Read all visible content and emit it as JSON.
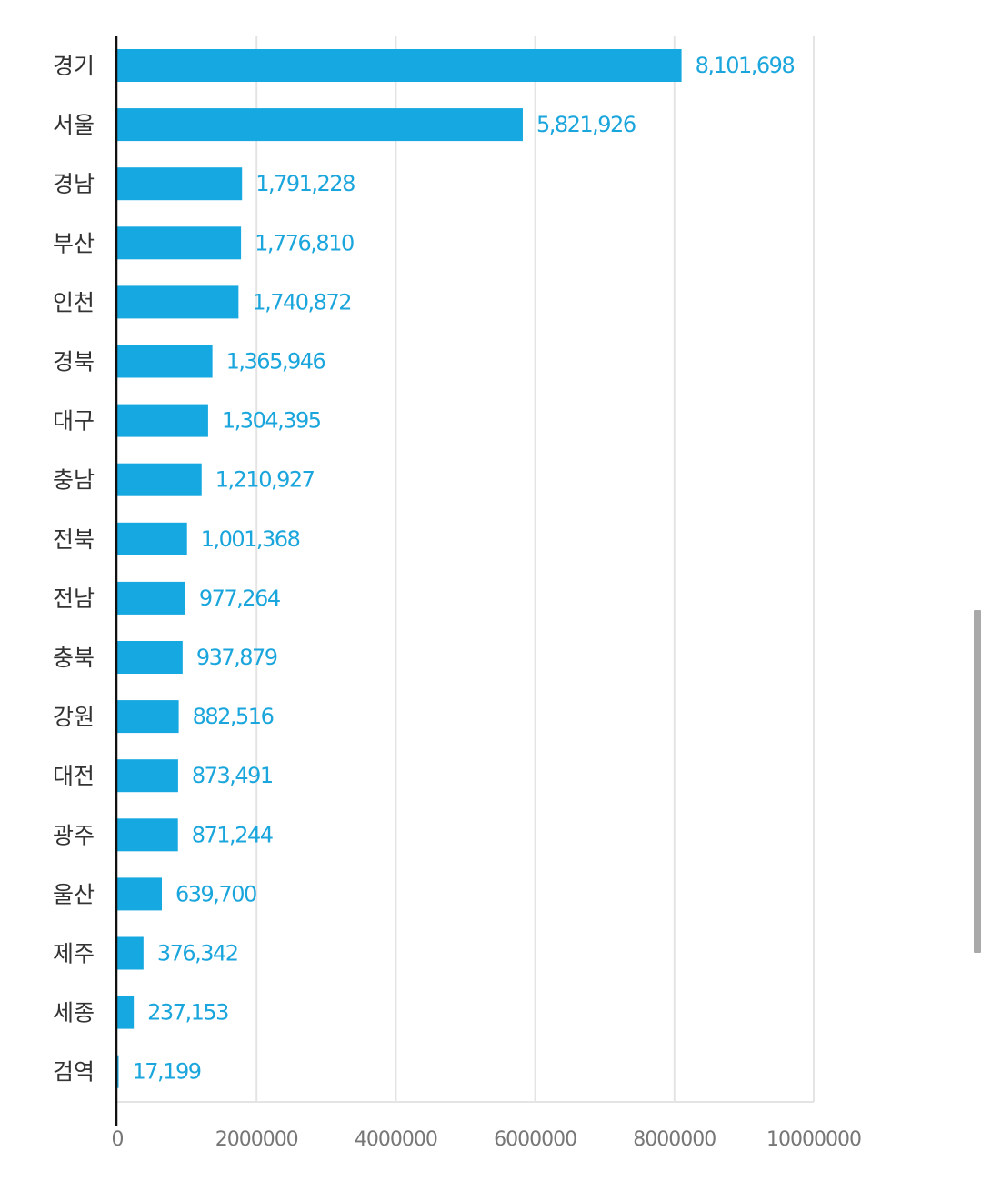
{
  "chart_data": {
    "type": "bar",
    "orientation": "horizontal",
    "categories": [
      "경기",
      "서울",
      "경남",
      "부산",
      "인천",
      "경북",
      "대구",
      "충남",
      "전북",
      "전남",
      "충북",
      "강원",
      "대전",
      "광주",
      "울산",
      "제주",
      "세종",
      "검역"
    ],
    "values": [
      8101698,
      5821926,
      1791228,
      1776810,
      1740872,
      1365946,
      1304395,
      1210927,
      1001368,
      977264,
      937879,
      882516,
      873491,
      871244,
      639700,
      376342,
      237153,
      17199
    ],
    "value_labels": [
      "8,101,698",
      "5,821,926",
      "1,791,228",
      "1,776,810",
      "1,740,872",
      "1,365,946",
      "1,304,395",
      "1,210,927",
      "1,001,368",
      "977,264",
      "937,879",
      "882,516",
      "873,491",
      "871,244",
      "639,700",
      "376,342",
      "237,153",
      "17,199"
    ],
    "xlim": [
      0,
      10000000
    ],
    "x_ticks": [
      0,
      2000000,
      4000000,
      6000000,
      8000000,
      10000000
    ],
    "x_tick_labels": [
      "0",
      "2000000",
      "4000000",
      "6000000",
      "8000000",
      "10000000"
    ],
    "grid": "vertical",
    "bar_color": "#16a8e0",
    "label_color": "#1aa6dc",
    "title": "",
    "xlabel": "",
    "ylabel": ""
  }
}
